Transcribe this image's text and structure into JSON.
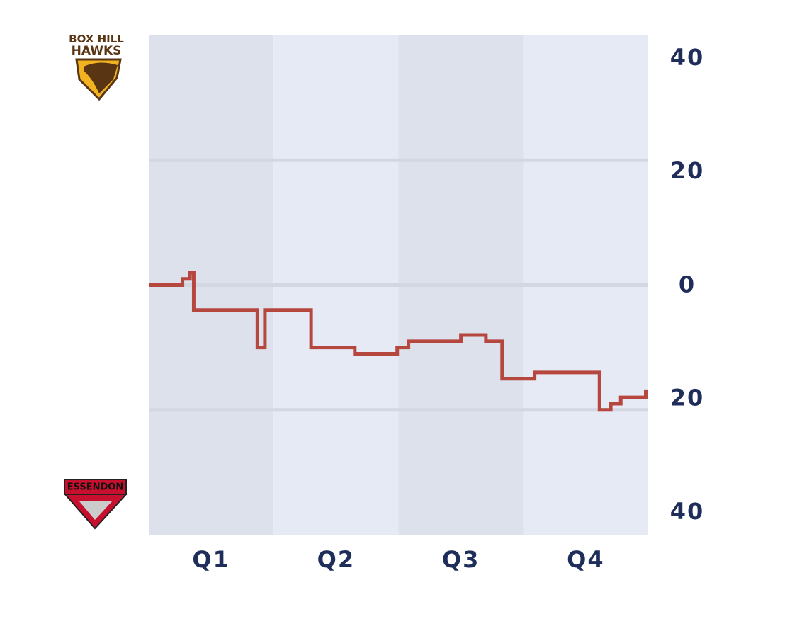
{
  "chart_data": {
    "type": "step",
    "logos": [
      {
        "lines": [
          "BOX HILL",
          "HAWKS"
        ]
      },
      {
        "lines": [
          "ESSENDON"
        ]
      }
    ],
    "xlim": [
      0,
      4
    ],
    "xticks": [
      {
        "value": 0.5,
        "label": "Q1"
      },
      {
        "value": 1.5,
        "label": "Q2"
      },
      {
        "value": 2.5,
        "label": "Q3"
      },
      {
        "value": 3.5,
        "label": "Q4"
      }
    ],
    "ylim": [
      -40,
      40
    ],
    "yticks": [
      40,
      20,
      0,
      {
        "value": -20,
        "label": "20"
      },
      {
        "value": -40,
        "label": "40"
      }
    ],
    "grid": true,
    "series": [
      {
        "color": "#b5473f",
        "x": [
          0,
          0.27,
          0.33,
          0.36,
          0.87,
          0.93,
          1.3,
          1.65,
          1.99,
          2.08,
          2.5,
          2.7,
          2.83,
          3.09,
          3.61,
          3.7,
          3.78,
          3.98,
          4
        ],
        "values": [
          0,
          1,
          2,
          -4,
          -10,
          -4,
          -10,
          -11,
          -10,
          -9,
          -8,
          -9,
          -15,
          -14,
          -20,
          -19,
          -18,
          -17,
          -17
        ]
      }
    ]
  }
}
